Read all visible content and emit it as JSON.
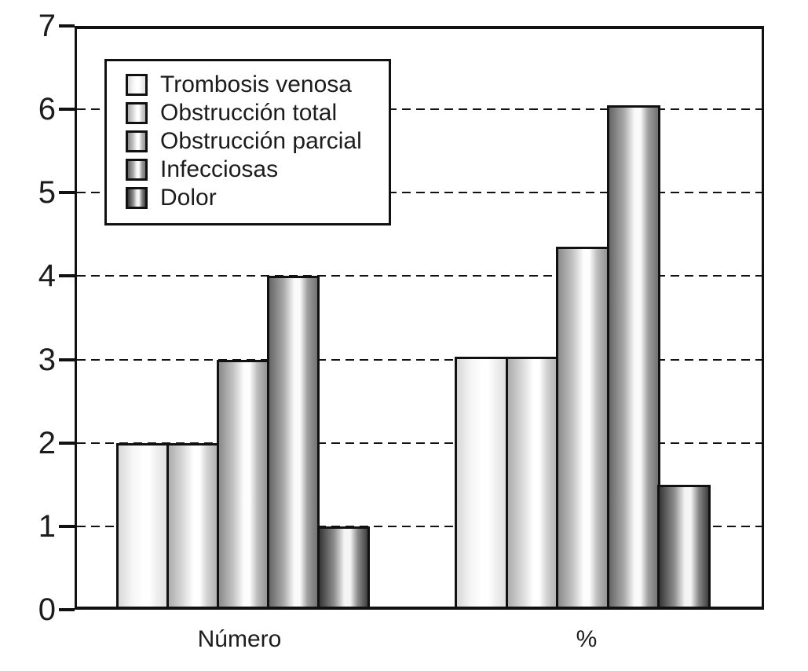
{
  "chart_data": {
    "type": "bar",
    "title": "",
    "categories": [
      "Número",
      "%"
    ],
    "series": [
      {
        "name": "Trombosis venosa",
        "values": [
          2,
          3.03
        ]
      },
      {
        "name": "Obstrucción total",
        "values": [
          2,
          3.03
        ]
      },
      {
        "name": "Obstrucción parcial",
        "values": [
          3,
          4.35
        ]
      },
      {
        "name": "Infecciosas",
        "values": [
          4,
          6.05
        ]
      },
      {
        "name": "Dolor",
        "values": [
          1,
          1.5
        ]
      }
    ],
    "ylim": [
      0,
      7
    ],
    "yticks": [
      0,
      1,
      2,
      3,
      4,
      5,
      6,
      7
    ],
    "grid": "horizontal dashed lines at values 1-6",
    "legend_position": "upper-left inside plot",
    "axis_color": "#111111",
    "text_color": "#1c1c1c",
    "background_color": "#ffffff",
    "series_gradients": [
      {
        "edge": "#d8d8d8",
        "mid": "#f6f6f6",
        "stripe": "#ffffff",
        "mid2": "#efefef",
        "edge2": "#e0e0e0"
      },
      {
        "edge": "#acacac",
        "mid": "#dadada",
        "stripe": "#ffffff",
        "mid2": "#d2d2d2",
        "edge2": "#b2b2b2"
      },
      {
        "edge": "#8a8a8a",
        "mid": "#c4c4c4",
        "stripe": "#fdfdfd",
        "mid2": "#bcbcbc",
        "edge2": "#949494"
      },
      {
        "edge": "#666666",
        "mid": "#a8a8a8",
        "stripe": "#fafafa",
        "mid2": "#9e9e9e",
        "edge2": "#727272"
      },
      {
        "edge": "#373737",
        "mid": "#8c8c8c",
        "stripe": "#f5f5f5",
        "mid2": "#8a8a8a",
        "edge2": "#3e3e3e"
      }
    ]
  }
}
